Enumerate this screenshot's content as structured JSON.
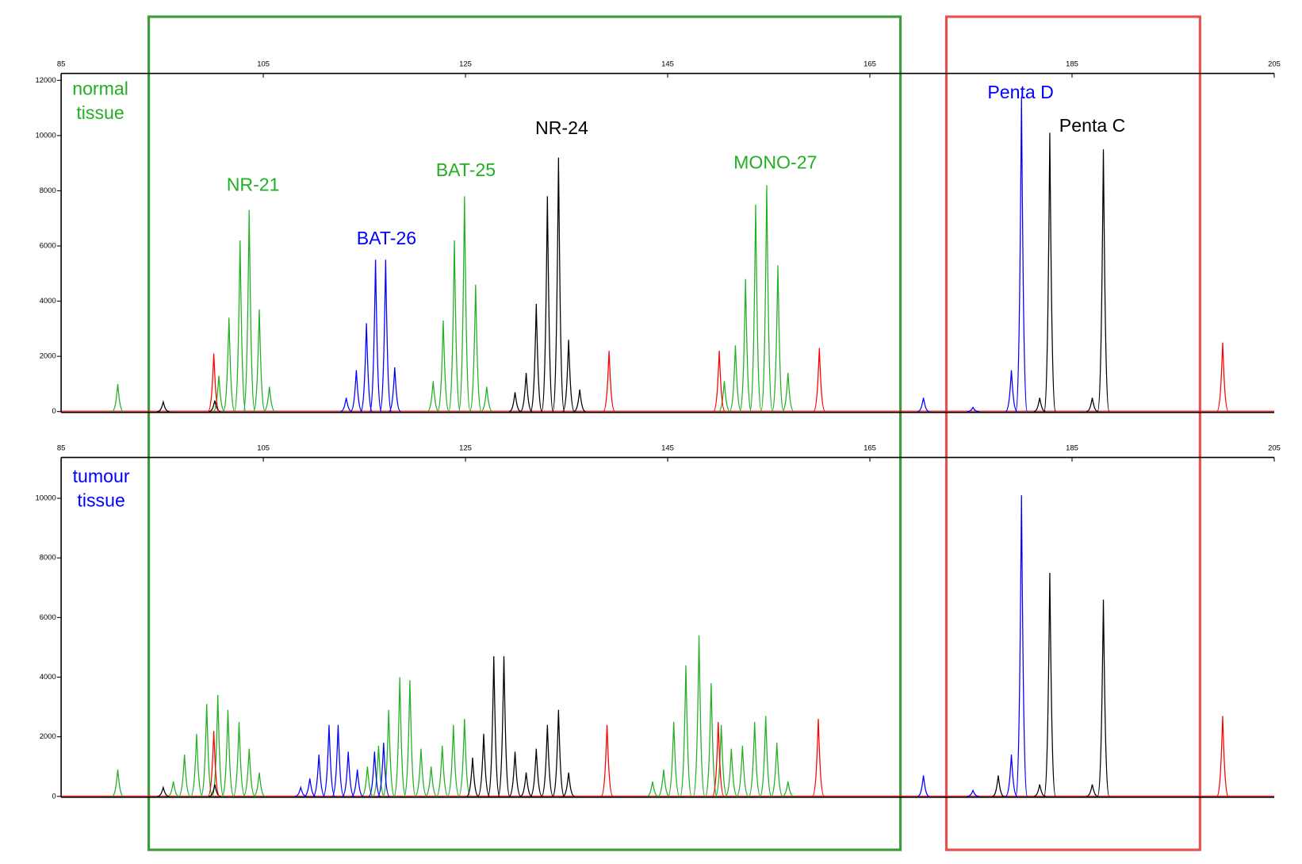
{
  "chart_data": [
    {
      "type": "peaks",
      "label": "normal tissue",
      "label_color": "#22b022",
      "xlim": [
        85,
        205
      ],
      "xticks": [
        85,
        105,
        125,
        145,
        165,
        185,
        205
      ],
      "ylim": [
        0,
        12250
      ],
      "yticks": [
        0,
        2000,
        4000,
        6000,
        8000,
        10000,
        12000
      ],
      "series": [
        {
          "color": "#22b022",
          "x": [
            90.6,
            100.6,
            101.6,
            102.7,
            103.6,
            104.6,
            105.6,
            121.8,
            122.8,
            123.9,
            124.9,
            126.0,
            127.1,
            150.6,
            151.7,
            152.7,
            153.7,
            154.8,
            155.9,
            156.9
          ],
          "values": [
            1000,
            1300,
            3400,
            6200,
            7300,
            3700,
            900,
            1100,
            3300,
            6200,
            7800,
            4600,
            900,
            1100,
            2400,
            4800,
            7500,
            8200,
            5300,
            1400
          ]
        },
        {
          "color": "#0000ff",
          "x": [
            113.2,
            114.2,
            115.2,
            116.1,
            117.1,
            118.0,
            170.3,
            175.2,
            179.0,
            180.0
          ],
          "values": [
            500,
            1500,
            3200,
            5500,
            5500,
            1600,
            500,
            150,
            1500,
            11400
          ]
        },
        {
          "color": "#000000",
          "x": [
            95.1,
            100.2,
            129.9,
            131.0,
            132.0,
            133.1,
            134.2,
            135.2,
            136.3,
            181.8,
            182.8,
            187.0,
            188.1
          ],
          "values": [
            350,
            400,
            700,
            1400,
            3900,
            7800,
            9200,
            2600,
            800,
            500,
            10100,
            500,
            9500
          ]
        },
        {
          "color": "#ff0000",
          "x": [
            100.1,
            139.2,
            150.1,
            160.0,
            199.9
          ],
          "values": [
            2100,
            2200,
            2200,
            2300,
            2500
          ]
        }
      ],
      "annotations": [
        {
          "text": "NR-21",
          "color": "#22b022"
        },
        {
          "text": "BAT-26",
          "color": "#0000ff"
        },
        {
          "text": "BAT-25",
          "color": "#22b022"
        },
        {
          "text": "NR-24",
          "color": "#000000"
        },
        {
          "text": "MONO-27",
          "color": "#22b022"
        },
        {
          "text": "Penta D",
          "color": "#0000ff"
        },
        {
          "text": "Penta C",
          "color": "#000000"
        }
      ]
    },
    {
      "type": "peaks",
      "label": "tumour tissue",
      "label_color": "#0000ff",
      "xlim": [
        85,
        205
      ],
      "xticks": [
        85,
        105,
        125,
        145,
        165,
        185,
        205
      ],
      "ylim": [
        0,
        11370
      ],
      "yticks": [
        0,
        2000,
        4000,
        6000,
        8000,
        10000
      ],
      "series": [
        {
          "color": "#22b022",
          "x": [
            90.6,
            96.1,
            97.2,
            98.4,
            99.4,
            100.5,
            101.5,
            102.6,
            103.6,
            104.6,
            115.3,
            116.4,
            117.4,
            118.5,
            119.5,
            120.6,
            121.6,
            122.7,
            123.8,
            124.9,
            143.5,
            144.6,
            145.6,
            146.8,
            148.1,
            149.3,
            150.3,
            151.3,
            152.4,
            153.6,
            154.7,
            155.8,
            156.9
          ],
          "values": [
            900,
            500,
            1400,
            2100,
            3100,
            3400,
            2900,
            2500,
            1600,
            800,
            1000,
            1700,
            2900,
            4000,
            3900,
            1600,
            1000,
            1700,
            2400,
            2600,
            500,
            900,
            2500,
            4400,
            5400,
            3800,
            2400,
            1600,
            1700,
            2500,
            2700,
            1800,
            500
          ]
        },
        {
          "color": "#0000ff",
          "x": [
            108.7,
            109.6,
            110.5,
            111.5,
            112.4,
            113.4,
            114.3,
            116.0,
            116.9,
            170.3,
            175.2,
            179.0,
            180.0
          ],
          "values": [
            300,
            600,
            1400,
            2400,
            2400,
            1500,
            900,
            1500,
            1800,
            700,
            200,
            1400,
            10100
          ]
        },
        {
          "color": "#000000",
          "x": [
            95.1,
            100.2,
            125.7,
            126.8,
            127.8,
            128.8,
            129.9,
            131.0,
            132.0,
            133.1,
            134.2,
            135.2,
            177.7,
            181.8,
            182.8,
            187.0,
            188.1
          ],
          "values": [
            300,
            400,
            1300,
            2100,
            4700,
            4700,
            1500,
            800,
            1600,
            2400,
            2900,
            800,
            700,
            400,
            7500,
            400,
            6600
          ]
        },
        {
          "color": "#ff0000",
          "x": [
            100.1,
            139.0,
            150.0,
            159.9,
            199.9
          ],
          "values": [
            2200,
            2400,
            2500,
            2600,
            2700
          ]
        }
      ],
      "annotations": []
    }
  ]
}
